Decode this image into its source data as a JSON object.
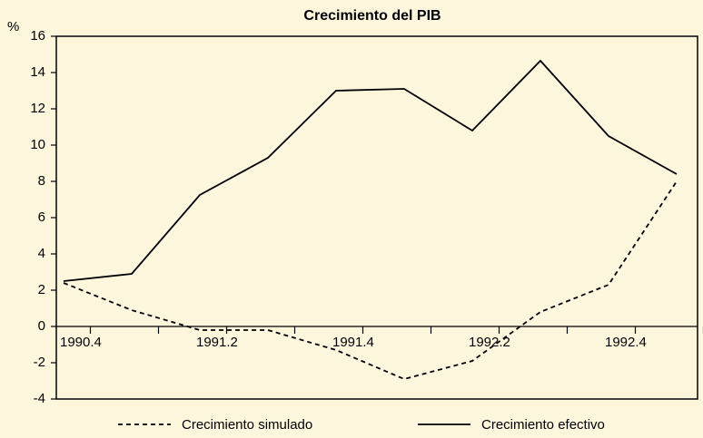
{
  "chart_data": {
    "type": "line",
    "title": "Crecimiento del PIB",
    "y_label": "%",
    "categories": [
      "1990.4",
      null,
      "1991.2",
      null,
      "1991.4",
      null,
      "1992.2",
      null,
      "1992.4",
      null
    ],
    "series": [
      {
        "name": "Crecimiento simulado",
        "color": "#000000",
        "style": "dashed",
        "values": [
          2.4,
          0.9,
          -0.2,
          -0.2,
          -1.3,
          -2.9,
          -1.9,
          0.8,
          2.3,
          8.0
        ]
      },
      {
        "name": "Crecimiento efectivo",
        "color": "#000000",
        "style": "solid",
        "values": [
          2.5,
          2.9,
          7.25,
          9.3,
          13.0,
          13.1,
          10.8,
          14.65,
          10.5,
          8.4
        ]
      }
    ],
    "ylim": [
      -4,
      16
    ],
    "yticks": [
      -4,
      -2,
      0,
      2,
      4,
      6,
      8,
      10,
      12,
      14,
      16
    ]
  }
}
